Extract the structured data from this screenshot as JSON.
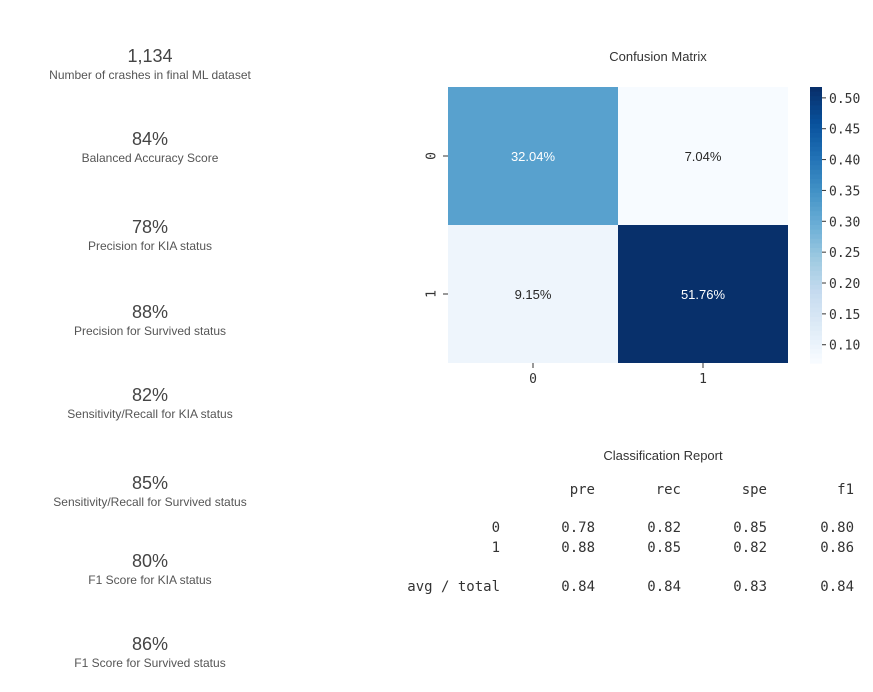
{
  "kpis": [
    {
      "value": "1,134",
      "label": "Number of crashes in final ML dataset"
    },
    {
      "value": "84%",
      "label": "Balanced Accuracy Score"
    },
    {
      "value": "78%",
      "label": "Precision for KIA status"
    },
    {
      "value": "88%",
      "label": "Precision for Survived status"
    },
    {
      "value": "82%",
      "label": "Sensitivity/Recall for KIA status"
    },
    {
      "value": "85%",
      "label": "Sensitivity/Recall for Survived status"
    },
    {
      "value": "80%",
      "label": "F1 Score for KIA status"
    },
    {
      "value": "86%",
      "label": "F1 Score for Survived status"
    }
  ],
  "chart_data": {
    "type": "heatmap",
    "title": "Confusion Matrix",
    "rows": [
      "0",
      "1"
    ],
    "cols": [
      "0",
      "1"
    ],
    "values": [
      [
        0.3204,
        0.0704
      ],
      [
        0.0915,
        0.5176
      ]
    ],
    "cell_labels": [
      [
        "32.04%",
        "7.04%"
      ],
      [
        "9.15%",
        "51.76%"
      ]
    ],
    "colorbar": {
      "range": [
        0.0704,
        0.5176
      ],
      "ticks": [
        0.1,
        0.15,
        0.2,
        0.25,
        0.3,
        0.35,
        0.4,
        0.45,
        0.5
      ],
      "tick_labels": [
        "0.10",
        "0.15",
        "0.20",
        "0.25",
        "0.30",
        "0.35",
        "0.40",
        "0.45",
        "0.50"
      ]
    },
    "colormap": "Blues"
  },
  "report": {
    "title": "Classification Report",
    "header": [
      "pre",
      "rec",
      "spe",
      "f1"
    ],
    "rows": [
      {
        "label": "0",
        "values": [
          "0.78",
          "0.82",
          "0.85",
          "0.80"
        ]
      },
      {
        "label": "1",
        "values": [
          "0.88",
          "0.85",
          "0.82",
          "0.86"
        ]
      },
      {
        "label": "avg / total",
        "values": [
          "0.84",
          "0.84",
          "0.83",
          "0.84"
        ]
      }
    ]
  }
}
